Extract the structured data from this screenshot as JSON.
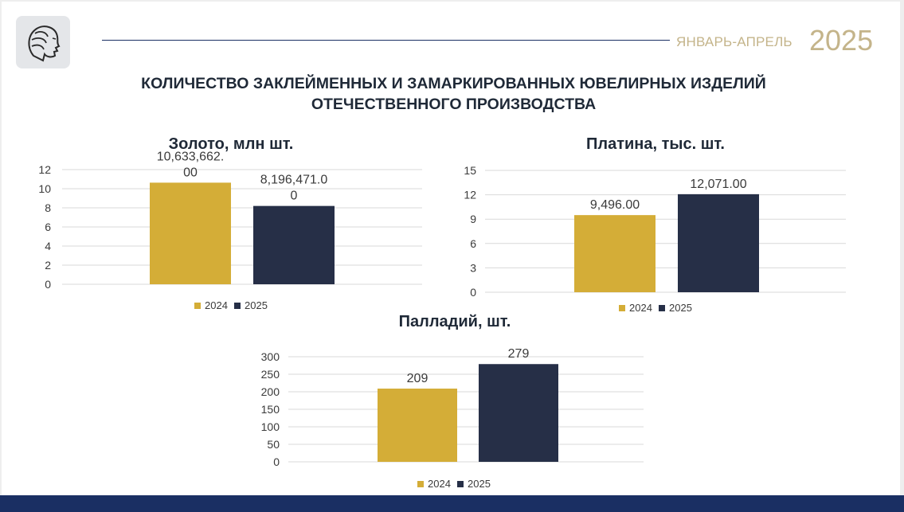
{
  "header": {
    "period": "ЯНВАРЬ-АПРЕЛЬ",
    "year": "2025",
    "title_line1": "КОЛИЧЕСТВО ЗАКЛЕЙМЕННЫХ И ЗАМАРКИРОВАННЫХ ЮВЕЛИРНЫХ ИЗДЕЛИЙ",
    "title_line2": "ОТЕЧЕСТВЕННОГО ПРОИЗВОДСТВА"
  },
  "logo": {
    "icon": "profile-head-emblem"
  },
  "colors": {
    "series_2024": "#d4ad37",
    "series_2025": "#262f47",
    "accent": "#c4b48a",
    "navy": "#1a2f63",
    "grid": "#d9d9d9"
  },
  "chart_data": [
    {
      "type": "bar",
      "title": "Золото, млн шт.",
      "categories": [
        ""
      ],
      "series": [
        {
          "name": "2024",
          "values": [
            10.633662
          ],
          "label": "10,633,662.00"
        },
        {
          "name": "2025",
          "values": [
            8.196471
          ],
          "label": "8,196,471.00"
        }
      ],
      "yticks": [
        "0",
        "2",
        "4",
        "6",
        "8",
        "10",
        "12"
      ],
      "ylim": [
        0,
        12
      ],
      "grid": true,
      "legend": "bottom",
      "xlabel": "",
      "ylabel": ""
    },
    {
      "type": "bar",
      "title": "Платина, тыс. шт.",
      "categories": [
        ""
      ],
      "series": [
        {
          "name": "2024",
          "values": [
            9.496
          ],
          "label": "9,496.00"
        },
        {
          "name": "2025",
          "values": [
            12.071
          ],
          "label": "12,071.00"
        }
      ],
      "yticks": [
        "0",
        "3",
        "6",
        "9",
        "12",
        "15"
      ],
      "ylim": [
        0,
        15
      ],
      "grid": true,
      "legend": "bottom",
      "xlabel": "",
      "ylabel": ""
    },
    {
      "type": "bar",
      "title": "Палладий, шт.",
      "categories": [
        ""
      ],
      "series": [
        {
          "name": "2024",
          "values": [
            209
          ],
          "label": "209"
        },
        {
          "name": "2025",
          "values": [
            279
          ],
          "label": "279"
        }
      ],
      "yticks": [
        "0",
        "50",
        "100",
        "150",
        "200",
        "250",
        "300"
      ],
      "ylim": [
        0,
        300
      ],
      "grid": true,
      "legend": "bottom",
      "xlabel": "",
      "ylabel": ""
    }
  ]
}
